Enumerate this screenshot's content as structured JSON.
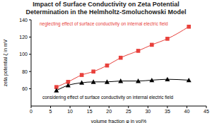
{
  "chart_data": {
    "type": "line",
    "title": "Impact of Surface Conductivity on Zeta Potential Determination in the Helmholtz-Smoluchowski Model",
    "x_label": "volume fraction φ in vol%",
    "y_label": "zeta potential ζ in mV",
    "x": [
      6.5,
      9.5,
      13,
      16,
      19.5,
      23,
      27.5,
      31,
      35,
      40.5
    ],
    "series": [
      {
        "color": "#e8413c",
        "marker": "square",
        "line_style": "solid",
        "values": [
          62,
          68,
          76,
          80,
          87,
          96,
          104,
          111,
          118,
          132
        ]
      },
      {
        "color": "#000000",
        "marker": "triangle",
        "line_style": "solid",
        "values": [
          58,
          64,
          67,
          68,
          68,
          69,
          69,
          70,
          71,
          70
        ]
      }
    ],
    "annotations": [
      {
        "text": "neglecting effect of surface conductivity on internal electric field",
        "color": "#e8413c"
      },
      {
        "text": "considering effect of surface conductivity on internal electric field",
        "color": "#000000"
      }
    ],
    "xlim": [
      0,
      45
    ],
    "xticks": [
      0,
      5,
      10,
      15,
      20,
      25,
      30,
      35,
      40,
      45
    ],
    "ylim": [
      40,
      140
    ],
    "yticks": [
      60,
      80,
      100,
      120,
      140
    ],
    "grid": false
  }
}
